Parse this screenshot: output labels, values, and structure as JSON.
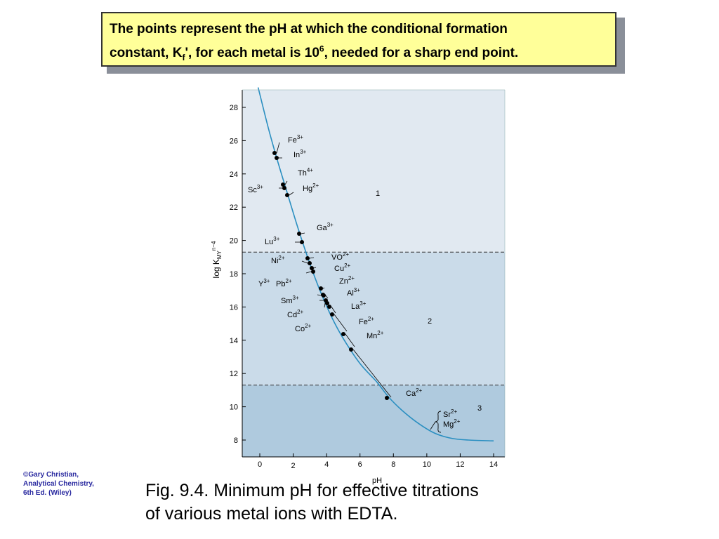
{
  "note": {
    "line1": "The points represent the pH at which the conditional formation",
    "prefix": "constant, K",
    "sub": "f",
    "mid": "', for each metal is 10",
    "sup": "6",
    "suffix": ", needed for a sharp end point."
  },
  "credit": [
    "©Gary Christian,",
    "Analytical Chemistry,",
    "6th Ed. (Wiley)"
  ],
  "caption": [
    "Fig. 9.4.  Minimum pH for effective titrations",
    "of  various metal ions with EDTA."
  ],
  "chart_data": {
    "type": "line",
    "xlabel": "pH",
    "ylabel_base": "log K",
    "ylabel_sub": "MY",
    "ylabel_sup": "n−4",
    "xlim": [
      -1,
      14.5
    ],
    "ylim": [
      6.6,
      29.2
    ],
    "x_ticks": [
      "0",
      "2",
      "4",
      "6",
      "8",
      "10",
      "12",
      "14"
    ],
    "y_ticks": [
      "8",
      "10",
      "12",
      "14",
      "16",
      "18",
      "20",
      "22",
      "24",
      "26",
      "28"
    ],
    "grid": false,
    "regions": [
      {
        "label": "1",
        "from": 19.3,
        "to": 29.2,
        "color": "#e1e9f1"
      },
      {
        "label": "2",
        "from": 11.3,
        "to": 19.3,
        "color": "#cadbe9"
      },
      {
        "label": "3",
        "from": 6.6,
        "to": 11.3,
        "color": "#afcade"
      }
    ],
    "curve": [
      {
        "x": -0.1,
        "y": 29.2
      },
      {
        "x": 0.5,
        "y": 26.8
      },
      {
        "x": 1.0,
        "y": 25.0
      },
      {
        "x": 1.6,
        "y": 23.0
      },
      {
        "x": 2.3,
        "y": 20.7
      },
      {
        "x": 3.0,
        "y": 18.6
      },
      {
        "x": 3.6,
        "y": 17.0
      },
      {
        "x": 4.3,
        "y": 15.4
      },
      {
        "x": 5.0,
        "y": 14.1
      },
      {
        "x": 6.0,
        "y": 12.6
      },
      {
        "x": 7.0,
        "y": 11.5
      },
      {
        "x": 7.7,
        "y": 10.6
      },
      {
        "x": 8.5,
        "y": 9.8
      },
      {
        "x": 9.5,
        "y": 9.0
      },
      {
        "x": 10.5,
        "y": 8.4
      },
      {
        "x": 11.5,
        "y": 8.1
      },
      {
        "x": 12.5,
        "y": 8.0
      },
      {
        "x": 14.0,
        "y": 7.95
      }
    ],
    "points": [
      {
        "label": "Fe",
        "charge": "3+",
        "x": 0.9,
        "y": 25.3,
        "side": "right"
      },
      {
        "label": "In",
        "charge": "3+",
        "x": 1.0,
        "y": 24.9,
        "side": "right"
      },
      {
        "label": "Th",
        "charge": "4+",
        "x": 1.4,
        "y": 23.3,
        "side": "right"
      },
      {
        "label": "Sc",
        "charge": "3+",
        "x": 1.5,
        "y": 23.1,
        "side": "left"
      },
      {
        "label": "Hg",
        "charge": "2+",
        "x": 1.6,
        "y": 22.7,
        "side": "right"
      },
      {
        "label": "Ga",
        "charge": "3+",
        "x": 2.3,
        "y": 20.4,
        "side": "right"
      },
      {
        "label": "Lu",
        "charge": "3+",
        "x": 2.5,
        "y": 19.8,
        "side": "left"
      },
      {
        "label": "VO",
        "charge": "2+",
        "x": 2.8,
        "y": 18.9,
        "side": "right"
      },
      {
        "label": "Ni",
        "charge": "2+",
        "x": 2.9,
        "y": 18.6,
        "side": "left"
      },
      {
        "label": "Cu",
        "charge": "2+",
        "x": 3.0,
        "y": 18.4,
        "side": "right"
      },
      {
        "label": "Y",
        "charge": "3+",
        "x": 3.2,
        "y": 18.1,
        "side": "left"
      },
      {
        "label": "Pb",
        "charge": "2+",
        "x": 3.2,
        "y": 18.1,
        "side": "left"
      },
      {
        "label": "Zn",
        "charge": "2+",
        "x": 3.6,
        "y": 17.1,
        "side": "right"
      },
      {
        "label": "Al",
        "charge": "3+",
        "x": 3.8,
        "y": 16.7,
        "side": "right"
      },
      {
        "label": "Sm",
        "charge": "3+",
        "x": 3.8,
        "y": 16.6,
        "side": "left"
      },
      {
        "label": "Cd",
        "charge": "2+",
        "x": 4.0,
        "y": 16.3,
        "side": "left"
      },
      {
        "label": "La",
        "charge": "3+",
        "x": 4.0,
        "y": 16.1,
        "side": "right"
      },
      {
        "label": "Co",
        "charge": "2+",
        "x": 4.1,
        "y": 16.1,
        "side": "left"
      },
      {
        "label": "Fe",
        "charge": "2+",
        "x": 5.0,
        "y": 14.4,
        "side": "right"
      },
      {
        "label": "Mn",
        "charge": "2+",
        "x": 5.4,
        "y": 13.5,
        "side": "right"
      },
      {
        "label": "Ca",
        "charge": "2+",
        "x": 7.5,
        "y": 10.6,
        "side": "right"
      },
      {
        "label": "Sr",
        "charge": "2+",
        "x": 10.0,
        "y": 8.6,
        "side": "right"
      },
      {
        "label": "Mg",
        "charge": "2+",
        "x": 10.0,
        "y": 8.6,
        "side": "right"
      }
    ]
  }
}
